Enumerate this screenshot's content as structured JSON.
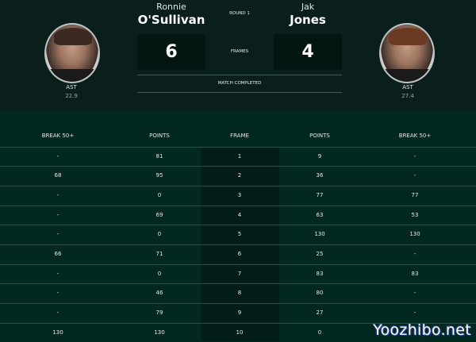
{
  "match": {
    "round": "ROUND 1",
    "frames_label": "FRAMES",
    "status": "MATCH COMPLETED",
    "player1": {
      "first_name": "Ronnie",
      "last_name": "O'Sullivan",
      "score": "6",
      "stat_label": "AST",
      "stat_value": "22.9"
    },
    "player2": {
      "first_name": "Jak",
      "last_name": "Jones",
      "score": "4",
      "stat_label": "AST",
      "stat_value": "27.4"
    }
  },
  "table": {
    "headers": [
      "BREAK 50+",
      "POINTS",
      "FRAME",
      "POINTS",
      "BREAK 50+"
    ],
    "rows": [
      [
        "-",
        "81",
        "1",
        "9",
        "-"
      ],
      [
        "68",
        "95",
        "2",
        "36",
        "-"
      ],
      [
        "-",
        "0",
        "3",
        "77",
        "77"
      ],
      [
        "-",
        "69",
        "4",
        "63",
        "53"
      ],
      [
        "-",
        "0",
        "5",
        "130",
        "130"
      ],
      [
        "66",
        "71",
        "6",
        "25",
        "-"
      ],
      [
        "-",
        "0",
        "7",
        "83",
        "83"
      ],
      [
        "-",
        "46",
        "8",
        "80",
        "-"
      ],
      [
        "-",
        "79",
        "9",
        "27",
        "-"
      ],
      [
        "130",
        "130",
        "10",
        "0",
        ""
      ]
    ]
  },
  "watermark": "Yoozhibo.net",
  "colors": {
    "header_bg": "#0a1f1b",
    "table_bg": "#022820",
    "frame_col_bg": "#031c17"
  }
}
